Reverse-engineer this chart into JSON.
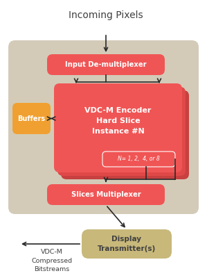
{
  "bg_color": "#ffffff",
  "panel_color": "#d3cbb8",
  "red_color": "#f05555",
  "red_dark_color": "#c84040",
  "orange_color": "#f0a030",
  "tan_color": "#c8b87a",
  "text_white": "#ffffff",
  "text_dark": "#404040",
  "arrow_color": "#282828",
  "title": "Incoming Pixels",
  "box1_label": "Input De-multiplexer",
  "box2_label": "VDC-M Encoder\nHard Slice\nInstance #N",
  "box3_label": "Slices Multiplexer",
  "box4_label": "Display\nTransmitter(s)",
  "buffer_label": "Buffers",
  "n_label": "N= 1, 2,  4, or 8",
  "bottom_label": "VDC-M\nCompressed\nBitstreams"
}
